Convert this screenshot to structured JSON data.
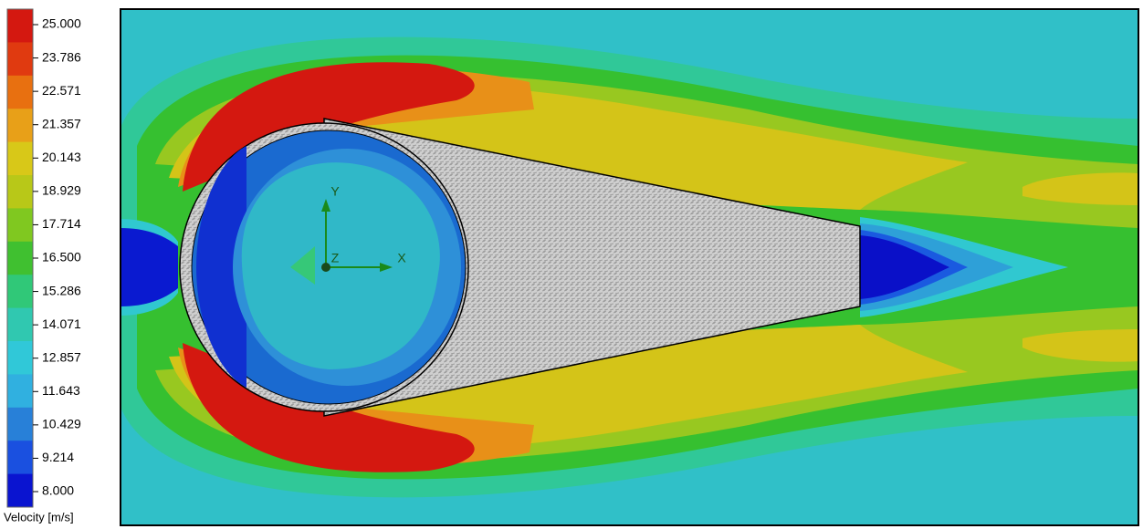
{
  "legend": {
    "title": "Velocity [m/s]",
    "ticks": [
      "25.000",
      "23.786",
      "22.571",
      "21.357",
      "20.143",
      "18.929",
      "17.714",
      "16.500",
      "15.286",
      "14.071",
      "12.857",
      "11.643",
      "10.429",
      "9.214",
      "8.000"
    ]
  },
  "triad": {
    "y": "Y",
    "z": "Z",
    "x": "X"
  }
}
